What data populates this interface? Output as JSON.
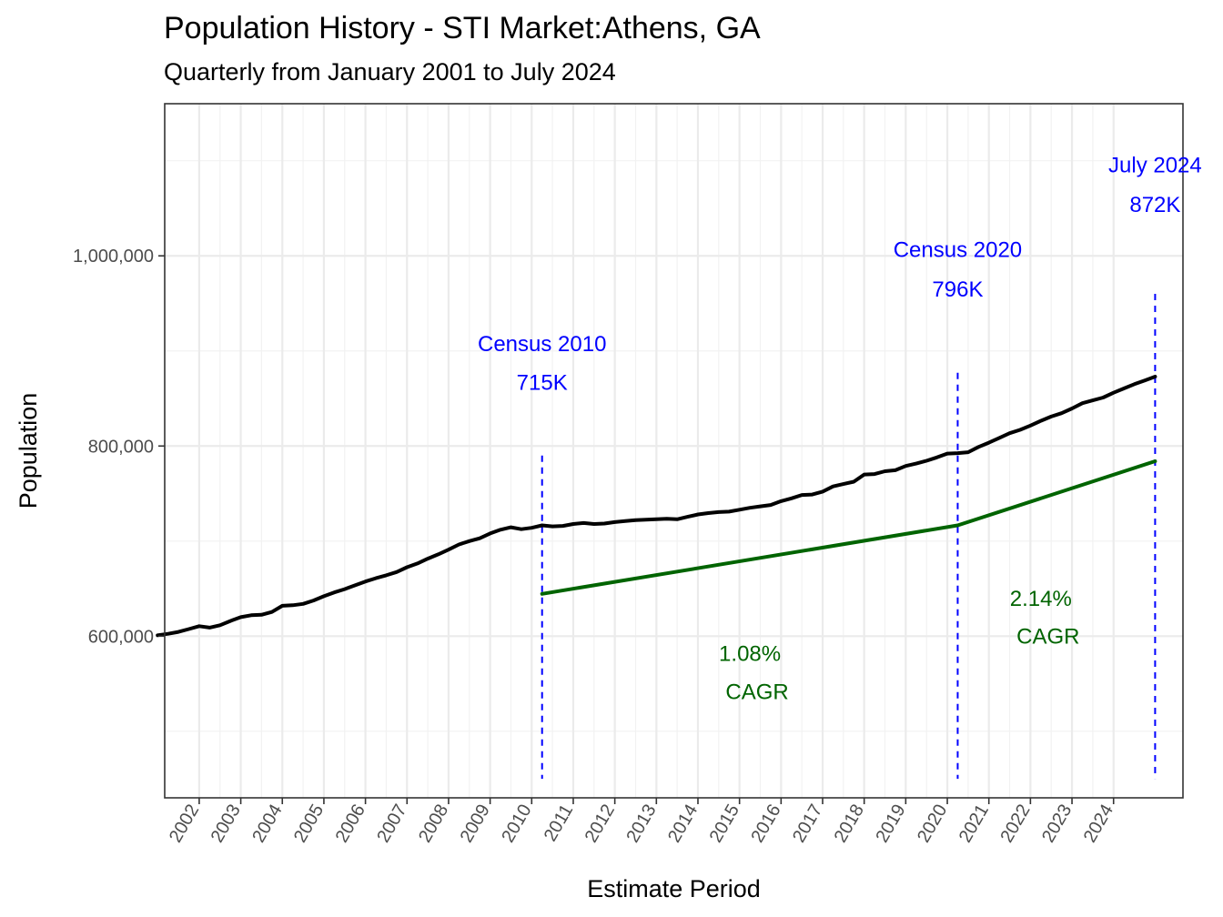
{
  "chart_data": {
    "type": "line",
    "title": "Population History - STI Market:Athens, GA",
    "subtitle": "Quarterly from January 2001 to July 2024",
    "xlabel": "Estimate Period",
    "ylabel": "Population",
    "xlim": [
      2001.17,
      2025.67
    ],
    "ylim": [
      430000,
      1160000
    ],
    "y_ticks": [
      600000,
      800000,
      1000000
    ],
    "y_tick_labels": [
      "600,000",
      "800,000",
      "1,000,000"
    ],
    "x_ticks": [
      2002,
      2003,
      2004,
      2005,
      2006,
      2007,
      2008,
      2009,
      2010,
      2011,
      2012,
      2013,
      2014,
      2015,
      2016,
      2017,
      2018,
      2019,
      2020,
      2021,
      2022,
      2023,
      2024
    ],
    "x_tick_labels": [
      "2002",
      "2003",
      "2004",
      "2005",
      "2006",
      "2007",
      "2008",
      "2009",
      "2010",
      "2011",
      "2012",
      "2013",
      "2014",
      "2015",
      "2016",
      "2017",
      "2018",
      "2019",
      "2020",
      "2021",
      "2022",
      "2023",
      "2024"
    ],
    "grid": true,
    "colors": {
      "population": "#000000",
      "cagr": "#006400",
      "census": "#0000ff"
    },
    "series": [
      {
        "points": [
          [
            2001.0,
            601000
          ],
          [
            2001.25,
            602500
          ],
          [
            2001.5,
            604500
          ],
          [
            2001.75,
            607500
          ],
          [
            2002.0,
            610500
          ],
          [
            2002.25,
            609000
          ],
          [
            2002.5,
            611500
          ],
          [
            2002.75,
            616000
          ],
          [
            2003.0,
            620000
          ],
          [
            2003.25,
            622000
          ],
          [
            2003.5,
            622500
          ],
          [
            2003.75,
            625500
          ],
          [
            2004.0,
            632000
          ],
          [
            2004.25,
            632500
          ],
          [
            2004.5,
            634000
          ],
          [
            2004.75,
            637500
          ],
          [
            2005.0,
            642000
          ],
          [
            2005.25,
            646000
          ],
          [
            2005.5,
            649500
          ],
          [
            2005.75,
            653500
          ],
          [
            2006.0,
            657500
          ],
          [
            2006.25,
            661000
          ],
          [
            2006.5,
            664000
          ],
          [
            2006.75,
            667500
          ],
          [
            2007.0,
            672500
          ],
          [
            2007.25,
            676500
          ],
          [
            2007.5,
            681500
          ],
          [
            2007.75,
            686000
          ],
          [
            2008.0,
            691000
          ],
          [
            2008.25,
            696500
          ],
          [
            2008.5,
            700000
          ],
          [
            2008.75,
            703000
          ],
          [
            2009.0,
            708000
          ],
          [
            2009.25,
            712000
          ],
          [
            2009.5,
            714500
          ],
          [
            2009.75,
            712500
          ],
          [
            2010.0,
            714000
          ],
          [
            2010.25,
            716500
          ],
          [
            2010.5,
            715500
          ],
          [
            2010.75,
            716000
          ],
          [
            2011.0,
            718000
          ],
          [
            2011.25,
            719000
          ],
          [
            2011.5,
            718000
          ],
          [
            2011.75,
            718500
          ],
          [
            2012.0,
            720000
          ],
          [
            2012.25,
            721000
          ],
          [
            2012.5,
            722000
          ],
          [
            2012.75,
            722500
          ],
          [
            2013.0,
            723000
          ],
          [
            2013.25,
            723500
          ],
          [
            2013.5,
            723000
          ],
          [
            2013.75,
            725500
          ],
          [
            2014.0,
            728000
          ],
          [
            2014.25,
            729500
          ],
          [
            2014.5,
            730500
          ],
          [
            2014.75,
            731000
          ],
          [
            2015.0,
            733000
          ],
          [
            2015.25,
            735000
          ],
          [
            2015.5,
            736500
          ],
          [
            2015.75,
            738000
          ],
          [
            2016.0,
            742000
          ],
          [
            2016.25,
            745000
          ],
          [
            2016.5,
            748500
          ],
          [
            2016.75,
            749000
          ],
          [
            2017.0,
            752000
          ],
          [
            2017.25,
            757500
          ],
          [
            2017.5,
            760000
          ],
          [
            2017.75,
            762500
          ],
          [
            2018.0,
            770000
          ],
          [
            2018.25,
            770500
          ],
          [
            2018.5,
            773500
          ],
          [
            2018.75,
            774500
          ],
          [
            2019.0,
            779000
          ],
          [
            2019.25,
            781500
          ],
          [
            2019.5,
            784500
          ],
          [
            2019.75,
            788000
          ],
          [
            2020.0,
            792000
          ],
          [
            2020.25,
            792500
          ],
          [
            2020.5,
            793500
          ],
          [
            2020.75,
            799000
          ],
          [
            2021.0,
            803500
          ],
          [
            2021.25,
            808500
          ],
          [
            2021.5,
            813500
          ],
          [
            2021.75,
            817000
          ],
          [
            2022.0,
            821500
          ],
          [
            2022.25,
            826500
          ],
          [
            2022.5,
            831000
          ],
          [
            2022.75,
            834500
          ],
          [
            2023.0,
            839500
          ],
          [
            2023.25,
            845000
          ],
          [
            2023.5,
            848000
          ],
          [
            2023.75,
            851000
          ],
          [
            2024.0,
            856000
          ],
          [
            2024.25,
            860500
          ],
          [
            2024.5,
            865000
          ],
          [
            2024.75,
            869000
          ],
          [
            2025.0,
            873000
          ]
        ]
      },
      {
        "points": [
          [
            2010.25,
            644500
          ],
          [
            2020.25,
            716500
          ],
          [
            2025.0,
            784000
          ]
        ]
      }
    ],
    "reference_lines": [
      {
        "x": 2010.25,
        "y_top": 790000,
        "y_bottom": 450000
      },
      {
        "x": 2020.25,
        "y_top": 877000,
        "y_bottom": 450000
      },
      {
        "x": 2025.0,
        "y_top": 960000,
        "y_bottom": 450000
      }
    ],
    "annotations": {
      "census_2010": {
        "label": "Census 2010",
        "value": "715K",
        "x": 2010.25,
        "y_label": 900000,
        "y_value": 859000
      },
      "census_2020": {
        "label": "Census 2020",
        "value": "796K",
        "x": 2020.25,
        "y_label": 999000,
        "y_value": 957000
      },
      "july_2024": {
        "label": "July 2024",
        "value": "872K",
        "x": 2025.0,
        "y_label": 1088000,
        "y_value": 1046000
      },
      "cagr_2010_2020": {
        "rate": "1.08%",
        "label": "CAGR",
        "x": 2015.25,
        "y_rate": 574000,
        "y_label": 534000
      },
      "cagr_2020_2024": {
        "rate": "2.14%",
        "label": "CAGR",
        "x": 2022.25,
        "y_rate": 632000,
        "y_label": 592000
      }
    }
  }
}
